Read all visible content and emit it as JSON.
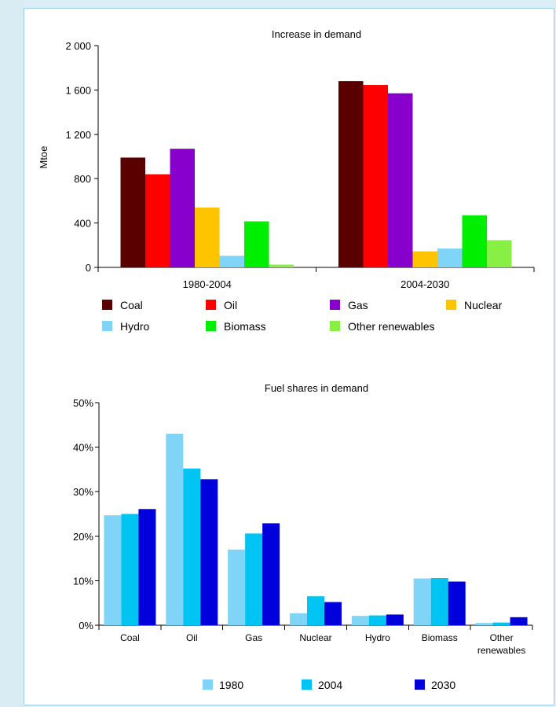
{
  "chart_data": [
    {
      "type": "bar",
      "title": "Increase in demand",
      "ylabel": "Mtoe",
      "xlabel": "",
      "ylim": [
        0,
        2000
      ],
      "yticks": [
        "0",
        "400",
        "800",
        "1 200",
        "1 600",
        "2 000"
      ],
      "ytick_values": [
        0,
        400,
        800,
        1200,
        1600,
        2000
      ],
      "categories": [
        "1980-2004",
        "2004-2030"
      ],
      "series": [
        {
          "name": "Coal",
          "color": "#5a0000",
          "values": [
            990,
            1680
          ]
        },
        {
          "name": "Oil",
          "color": "#ff0000",
          "values": [
            840,
            1645
          ]
        },
        {
          "name": "Gas",
          "color": "#8800cc",
          "values": [
            1070,
            1570
          ]
        },
        {
          "name": "Nuclear",
          "color": "#ffc400",
          "values": [
            540,
            145
          ]
        },
        {
          "name": "Hydro",
          "color": "#7fd4f7",
          "values": [
            105,
            170
          ]
        },
        {
          "name": "Biomass",
          "color": "#00ee00",
          "values": [
            415,
            470
          ]
        },
        {
          "name": "Other renewables",
          "color": "#88f044",
          "values": [
            25,
            245
          ]
        }
      ],
      "legend_position": "bottom",
      "grid": false
    },
    {
      "type": "bar",
      "title": "Fuel shares in demand",
      "xlabel": "",
      "ylabel": "",
      "ylim": [
        0,
        50
      ],
      "yticks": [
        "0%",
        "10%",
        "20%",
        "30%",
        "40%",
        "50%"
      ],
      "ytick_values": [
        0,
        10,
        20,
        30,
        40,
        50
      ],
      "categories": [
        "Coal",
        "Oil",
        "Gas",
        "Nuclear",
        "Hydro",
        "Biomass",
        "Other renewables"
      ],
      "series": [
        {
          "name": "1980",
          "color": "#7fd4f7",
          "values": [
            24.7,
            43.0,
            17.0,
            2.7,
            2.1,
            10.5,
            0.5
          ]
        },
        {
          "name": "2004",
          "color": "#00c4f2",
          "values": [
            25.0,
            35.2,
            20.6,
            6.5,
            2.2,
            10.6,
            0.6
          ]
        },
        {
          "name": "2030",
          "color": "#0000dd",
          "values": [
            26.1,
            32.8,
            22.9,
            5.2,
            2.4,
            9.8,
            1.8
          ]
        }
      ],
      "legend_position": "bottom",
      "grid": false
    }
  ]
}
